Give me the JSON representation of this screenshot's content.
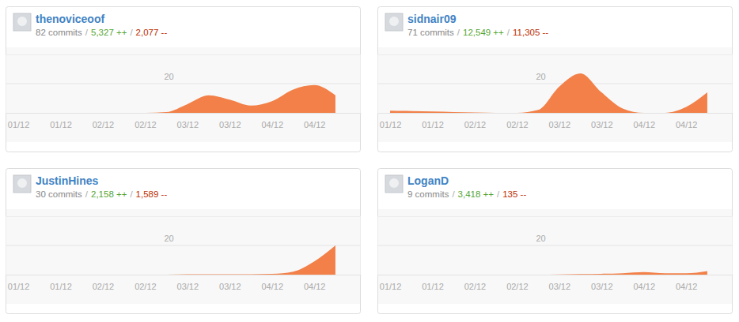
{
  "chart_data": [
    {
      "type": "area",
      "title": "thenoviceoof",
      "subtitle": [
        "82 commits",
        "/",
        "5,327 ++",
        "/",
        "2,077 --"
      ],
      "x": [
        0,
        1,
        2,
        3,
        4,
        5,
        6,
        7,
        8,
        9,
        10,
        11,
        12,
        13,
        14,
        15
      ],
      "values": [
        0,
        0,
        0,
        0,
        0,
        0,
        0,
        0.5,
        6,
        12,
        9,
        5,
        8,
        16,
        19,
        12
      ],
      "color": "#f28048",
      "xlim": [
        -0.6,
        16.2
      ],
      "xticks": [
        {
          "value": 0,
          "label": "01/12"
        },
        {
          "value": 2,
          "label": "01/12"
        },
        {
          "value": 4,
          "label": "02/12"
        },
        {
          "value": 6,
          "label": "02/12"
        },
        {
          "value": 8,
          "label": "03/12"
        },
        {
          "value": 10,
          "label": "03/12"
        },
        {
          "value": 12,
          "label": "04/12"
        },
        {
          "value": 14,
          "label": "04/12"
        }
      ],
      "ylim": [
        0,
        40
      ],
      "yticks": [
        20
      ],
      "grid": true
    },
    {
      "type": "area",
      "title": "sidnair09",
      "subtitle": [
        "71 commits",
        "/",
        "12,549 ++",
        "/",
        "11,305 --"
      ],
      "x": [
        0,
        1,
        2,
        3,
        4,
        5,
        6,
        7,
        8,
        9,
        10,
        11,
        12,
        13,
        14,
        15
      ],
      "values": [
        1.5,
        1.2,
        1,
        0.6,
        0.3,
        0,
        0,
        2,
        18,
        27,
        14,
        3,
        0,
        0,
        4,
        14
      ],
      "color": "#f28048",
      "xlim": [
        -0.6,
        16.2
      ],
      "xticks": [
        {
          "value": 0,
          "label": "01/12"
        },
        {
          "value": 2,
          "label": "01/12"
        },
        {
          "value": 4,
          "label": "02/12"
        },
        {
          "value": 6,
          "label": "02/12"
        },
        {
          "value": 8,
          "label": "03/12"
        },
        {
          "value": 10,
          "label": "03/12"
        },
        {
          "value": 12,
          "label": "04/12"
        },
        {
          "value": 14,
          "label": "04/12"
        }
      ],
      "ylim": [
        0,
        40
      ],
      "yticks": [
        20
      ],
      "grid": true
    },
    {
      "type": "area",
      "title": "JustinHines",
      "subtitle": [
        "30 commits",
        "/",
        "2,158 ++",
        "/",
        "1,589 --"
      ],
      "x": [
        0,
        1,
        2,
        3,
        4,
        5,
        6,
        7,
        8,
        9,
        10,
        11,
        12,
        13,
        14,
        15
      ],
      "values": [
        0,
        0,
        0,
        0,
        0,
        0,
        0,
        0,
        0.3,
        0.3,
        0.3,
        0.3,
        0.5,
        2,
        9,
        20
      ],
      "color": "#f28048",
      "xlim": [
        -0.6,
        16.2
      ],
      "xticks": [
        {
          "value": 0,
          "label": "01/12"
        },
        {
          "value": 2,
          "label": "01/12"
        },
        {
          "value": 4,
          "label": "02/12"
        },
        {
          "value": 6,
          "label": "02/12"
        },
        {
          "value": 8,
          "label": "03/12"
        },
        {
          "value": 10,
          "label": "03/12"
        },
        {
          "value": 12,
          "label": "04/12"
        },
        {
          "value": 14,
          "label": "04/12"
        }
      ],
      "ylim": [
        0,
        40
      ],
      "yticks": [
        20
      ],
      "grid": true
    },
    {
      "type": "area",
      "title": "LoganD",
      "subtitle": [
        "9 commits",
        "/",
        "3,418 ++",
        "/",
        "135 --"
      ],
      "x": [
        0,
        1,
        2,
        3,
        4,
        5,
        6,
        7,
        8,
        9,
        10,
        11,
        12,
        13,
        14,
        15
      ],
      "values": [
        0,
        0,
        0,
        0,
        0,
        0,
        0,
        0,
        0.2,
        0.4,
        0.6,
        1,
        1.8,
        1,
        1,
        2.5
      ],
      "color": "#f28048",
      "xlim": [
        -0.6,
        16.2
      ],
      "xticks": [
        {
          "value": 0,
          "label": "01/12"
        },
        {
          "value": 2,
          "label": "01/12"
        },
        {
          "value": 4,
          "label": "02/12"
        },
        {
          "value": 6,
          "label": "02/12"
        },
        {
          "value": 8,
          "label": "03/12"
        },
        {
          "value": 10,
          "label": "03/12"
        },
        {
          "value": 12,
          "label": "04/12"
        },
        {
          "value": 14,
          "label": "04/12"
        }
      ],
      "ylim": [
        0,
        40
      ],
      "yticks": [
        20
      ],
      "grid": true
    }
  ]
}
